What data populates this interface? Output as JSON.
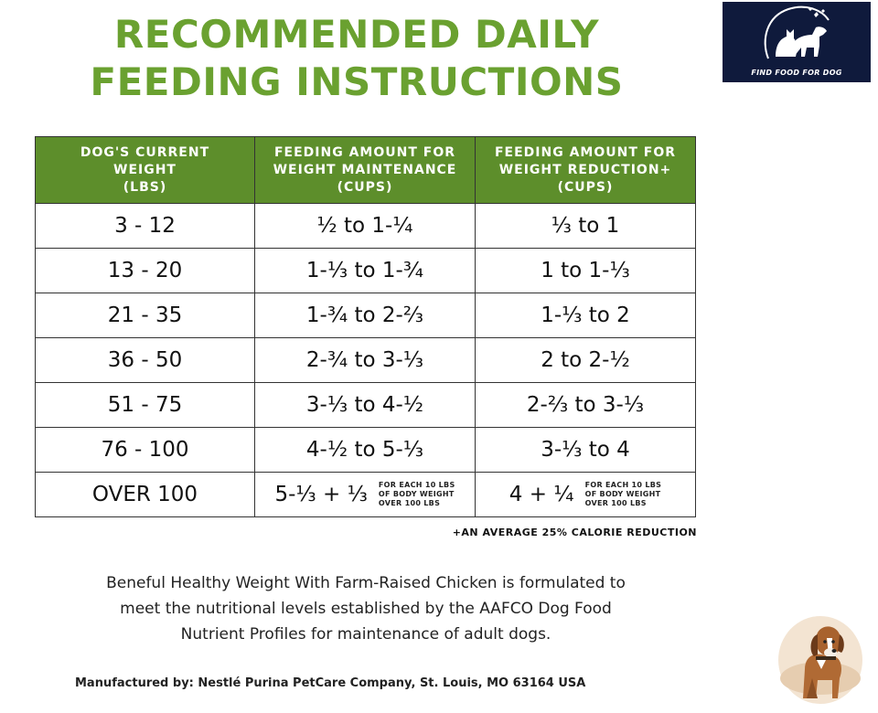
{
  "title": {
    "line1": "RECOMMENDED DAILY",
    "line2": "FEEDING INSTRUCTIONS",
    "color": "#6aa130"
  },
  "logo": {
    "text": "FIND FOOD FOR DOG",
    "icon": "dog-and-cat-silhouette-icon",
    "background": "#0f1a3c"
  },
  "table": {
    "header_color": "#5d8e2b",
    "headers": [
      "DOG'S CURRENT\nWEIGHT\n(LBS)",
      "FEEDING AMOUNT FOR\nWEIGHT MAINTENANCE\n(CUPS)",
      "FEEDING AMOUNT FOR\nWEIGHT REDUCTION+\n(CUPS)"
    ],
    "rows": [
      {
        "weight": "3 - 12",
        "maintenance": "½ to 1-¼",
        "reduction": "⅓ to 1"
      },
      {
        "weight": "13 - 20",
        "maintenance": "1-⅓ to 1-¾",
        "reduction": "1 to 1-⅓"
      },
      {
        "weight": "21 - 35",
        "maintenance": "1-¾ to 2-⅔",
        "reduction": "1-⅓ to 2"
      },
      {
        "weight": "36 - 50",
        "maintenance": "2-¾ to 3-⅓",
        "reduction": "2 to 2-½"
      },
      {
        "weight": "51 - 75",
        "maintenance": "3-⅓ to 4-½",
        "reduction": "2-⅔ to 3-⅓"
      },
      {
        "weight": "76 - 100",
        "maintenance": "4-½ to 5-⅓",
        "reduction": "3-⅓ to 4"
      }
    ],
    "last_row": {
      "weight": "OVER 100",
      "maintenance": "5-⅓ + ⅓",
      "maintenance_note": "FOR EACH 10 LBS\nOF BODY WEIGHT\nOVER 100 LBS",
      "reduction": "4 + ¼",
      "reduction_note": "FOR EACH 10 LBS\nOF BODY WEIGHT\nOVER 100 LBS"
    }
  },
  "footnote": "+AN AVERAGE  25% CALORIE REDUCTION",
  "description": "Beneful Healthy Weight With Farm-Raised Chicken is formulated to\nmeet the nutritional levels established by the AAFCO Dog Food\nNutrient Profiles for maintenance of adult dogs.",
  "manufacturer": "Manufactured by: Nestlé Purina PetCare Company, St. Louis, MO 63164 USA",
  "illustration": "beagle-dog-illustration"
}
